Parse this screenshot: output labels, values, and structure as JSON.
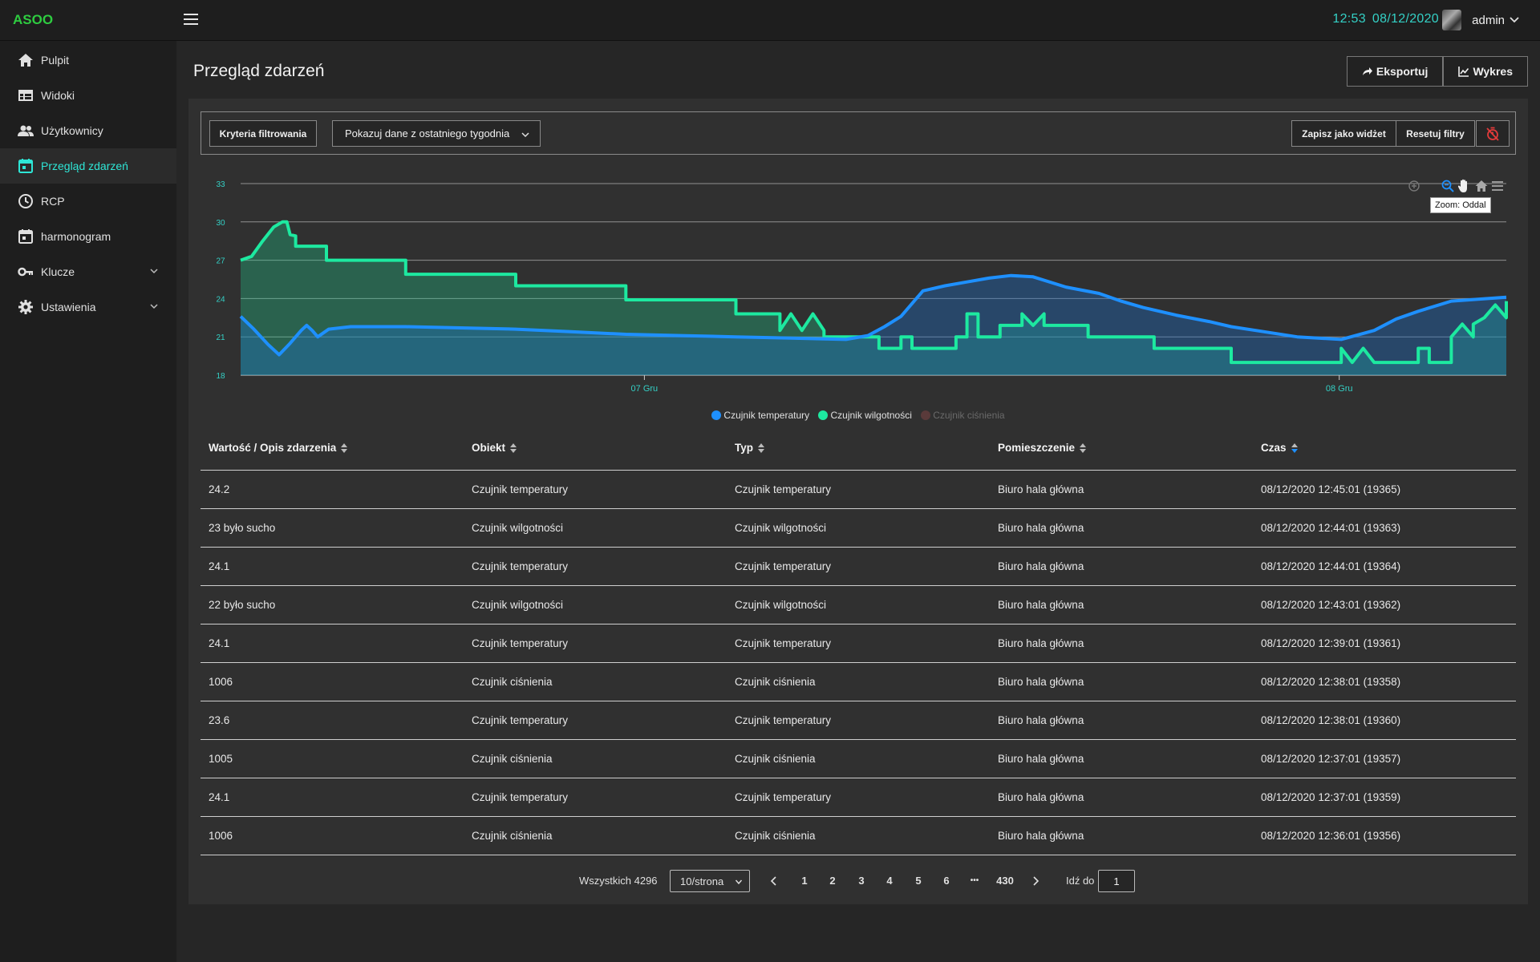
{
  "app": {
    "brand": "ASOO"
  },
  "header": {
    "time": "12:53",
    "date": "08/12/2020",
    "user": "admin"
  },
  "sidebar": {
    "items": [
      {
        "label": "Pulpit",
        "icon": "home-icon"
      },
      {
        "label": "Widoki",
        "icon": "table-icon"
      },
      {
        "label": "Użytkownicy",
        "icon": "users-icon"
      },
      {
        "label": "Przegląd zdarzeń",
        "icon": "calendar-icon",
        "active": true
      },
      {
        "label": "RCP",
        "icon": "clock-icon"
      },
      {
        "label": "harmonogram",
        "icon": "calendar-icon"
      },
      {
        "label": "Klucze",
        "icon": "key-icon",
        "expandable": true
      },
      {
        "label": "Ustawienia",
        "icon": "gear-icon",
        "expandable": true
      }
    ]
  },
  "page": {
    "title": "Przegląd zdarzeń",
    "export_label": "Eksportuj",
    "chart_label": "Wykres"
  },
  "filters": {
    "criteria_label": "Kryteria filtrowania",
    "range_value": "Pokazuj dane z ostatniego tygodnia",
    "save_widget_label": "Zapisz jako widżet",
    "reset_label": "Resetuj filtry"
  },
  "tooltip": "Zoom: Oddal",
  "chart_data": {
    "type": "area",
    "yticks": [
      18.0,
      21.0,
      24.0,
      27.0,
      30.0,
      33.0
    ],
    "ylim": [
      18,
      33
    ],
    "xticks": [
      "07 Gru",
      "08 Gru"
    ],
    "grid": true,
    "legend_position": "bottom",
    "series": [
      {
        "name": "Czujnik temperatury",
        "color": "#1e90ff",
        "visible": true,
        "points": [
          [
            0.0,
            22.6
          ],
          [
            0.012,
            21.6
          ],
          [
            0.025,
            20.4
          ],
          [
            0.035,
            19.6
          ],
          [
            0.045,
            20.5
          ],
          [
            0.055,
            21.5
          ],
          [
            0.06,
            21.9
          ],
          [
            0.065,
            21.5
          ],
          [
            0.07,
            21.0
          ],
          [
            0.08,
            21.6
          ],
          [
            0.1,
            21.8
          ],
          [
            0.15,
            21.8
          ],
          [
            0.2,
            21.7
          ],
          [
            0.25,
            21.6
          ],
          [
            0.3,
            21.4
          ],
          [
            0.35,
            21.2
          ],
          [
            0.4,
            21.1
          ],
          [
            0.45,
            21.0
          ],
          [
            0.5,
            20.9
          ],
          [
            0.55,
            20.8
          ],
          [
            0.57,
            21.1
          ],
          [
            0.585,
            21.8
          ],
          [
            0.6,
            22.6
          ],
          [
            0.62,
            24.6
          ],
          [
            0.64,
            25.0
          ],
          [
            0.66,
            25.3
          ],
          [
            0.68,
            25.6
          ],
          [
            0.7,
            25.8
          ],
          [
            0.72,
            25.7
          ],
          [
            0.75,
            24.9
          ],
          [
            0.78,
            24.4
          ],
          [
            0.8,
            23.8
          ],
          [
            0.82,
            23.3
          ],
          [
            0.85,
            22.7
          ],
          [
            0.88,
            22.2
          ],
          [
            0.9,
            21.8
          ],
          [
            0.93,
            21.4
          ],
          [
            0.96,
            21.0
          ],
          [
            1.0,
            20.8
          ],
          [
            1.03,
            21.5
          ],
          [
            1.05,
            22.4
          ],
          [
            1.07,
            23.0
          ],
          [
            1.1,
            23.8
          ],
          [
            1.15,
            24.1
          ]
        ]
      },
      {
        "name": "Czujnik wilgotności",
        "color": "#1de9a0",
        "visible": true,
        "points": [
          [
            0.0,
            27.0
          ],
          [
            0.01,
            27.3
          ],
          [
            0.02,
            28.5
          ],
          [
            0.03,
            29.6
          ],
          [
            0.038,
            30.0
          ],
          [
            0.042,
            30.0
          ],
          [
            0.045,
            29.0
          ],
          [
            0.05,
            28.9
          ],
          [
            0.05,
            28.1
          ],
          [
            0.078,
            28.1
          ],
          [
            0.078,
            27.0
          ],
          [
            0.15,
            27.0
          ],
          [
            0.15,
            25.9
          ],
          [
            0.25,
            25.9
          ],
          [
            0.25,
            25.0
          ],
          [
            0.35,
            25.0
          ],
          [
            0.35,
            23.9
          ],
          [
            0.45,
            23.9
          ],
          [
            0.45,
            22.8
          ],
          [
            0.49,
            22.8
          ],
          [
            0.49,
            21.5
          ],
          [
            0.5,
            22.8
          ],
          [
            0.51,
            21.5
          ],
          [
            0.52,
            22.8
          ],
          [
            0.53,
            21.5
          ],
          [
            0.53,
            21.0
          ],
          [
            0.58,
            21.0
          ],
          [
            0.58,
            20.1
          ],
          [
            0.6,
            20.1
          ],
          [
            0.6,
            21.0
          ],
          [
            0.61,
            21.0
          ],
          [
            0.61,
            20.1
          ],
          [
            0.65,
            20.1
          ],
          [
            0.65,
            21.0
          ],
          [
            0.66,
            21.0
          ],
          [
            0.66,
            22.8
          ],
          [
            0.67,
            22.8
          ],
          [
            0.67,
            21.0
          ],
          [
            0.69,
            21.0
          ],
          [
            0.69,
            21.9
          ],
          [
            0.71,
            21.9
          ],
          [
            0.71,
            22.8
          ],
          [
            0.72,
            21.9
          ],
          [
            0.73,
            22.8
          ],
          [
            0.73,
            21.9
          ],
          [
            0.77,
            21.9
          ],
          [
            0.77,
            21.0
          ],
          [
            0.83,
            21.0
          ],
          [
            0.83,
            20.1
          ],
          [
            0.9,
            20.1
          ],
          [
            0.9,
            19.0
          ],
          [
            1.0,
            19.0
          ],
          [
            1.0,
            20.1
          ],
          [
            1.01,
            19.0
          ],
          [
            1.02,
            20.1
          ],
          [
            1.03,
            19.0
          ],
          [
            1.07,
            19.0
          ],
          [
            1.07,
            20.1
          ],
          [
            1.08,
            20.1
          ],
          [
            1.08,
            19.0
          ],
          [
            1.1,
            19.0
          ],
          [
            1.1,
            21.0
          ],
          [
            1.11,
            22.0
          ],
          [
            1.12,
            21.0
          ],
          [
            1.12,
            22.0
          ],
          [
            1.13,
            22.5
          ],
          [
            1.14,
            23.5
          ],
          [
            1.15,
            22.5
          ],
          [
            1.15,
            23.8
          ]
        ]
      },
      {
        "name": "Czujnik ciśnienia",
        "color": "#8a5a5a",
        "visible": false,
        "points": []
      }
    ]
  },
  "table": {
    "columns": [
      {
        "label": "Wartość / Opis zdarzenia"
      },
      {
        "label": "Obiekt"
      },
      {
        "label": "Typ"
      },
      {
        "label": "Pomieszczenie"
      },
      {
        "label": "Czas",
        "sorted": "desc"
      }
    ],
    "rows": [
      [
        "24.2",
        "Czujnik temperatury",
        "Czujnik temperatury",
        "Biuro hala główna",
        "08/12/2020 12:45:01 (19365)"
      ],
      [
        "23 było sucho",
        "Czujnik wilgotności",
        "Czujnik wilgotności",
        "Biuro hala główna",
        "08/12/2020 12:44:01 (19363)"
      ],
      [
        "24.1",
        "Czujnik temperatury",
        "Czujnik temperatury",
        "Biuro hala główna",
        "08/12/2020 12:44:01 (19364)"
      ],
      [
        "22 było sucho",
        "Czujnik wilgotności",
        "Czujnik wilgotności",
        "Biuro hala główna",
        "08/12/2020 12:43:01 (19362)"
      ],
      [
        "24.1",
        "Czujnik temperatury",
        "Czujnik temperatury",
        "Biuro hala główna",
        "08/12/2020 12:39:01 (19361)"
      ],
      [
        "1006",
        "Czujnik ciśnienia",
        "Czujnik ciśnienia",
        "Biuro hala główna",
        "08/12/2020 12:38:01 (19358)"
      ],
      [
        "23.6",
        "Czujnik temperatury",
        "Czujnik temperatury",
        "Biuro hala główna",
        "08/12/2020 12:38:01 (19360)"
      ],
      [
        "1005",
        "Czujnik ciśnienia",
        "Czujnik ciśnienia",
        "Biuro hala główna",
        "08/12/2020 12:37:01 (19357)"
      ],
      [
        "24.1",
        "Czujnik temperatury",
        "Czujnik temperatury",
        "Biuro hala główna",
        "08/12/2020 12:37:01 (19359)"
      ],
      [
        "1006",
        "Czujnik ciśnienia",
        "Czujnik ciśnienia",
        "Biuro hala główna",
        "08/12/2020 12:36:01 (19356)"
      ]
    ]
  },
  "pagination": {
    "total_label": "Wszystkich 4296",
    "page_size": "10/strona",
    "pages": [
      "1",
      "2",
      "3",
      "4",
      "5",
      "6",
      "•••",
      "430"
    ],
    "goto_label": "Idź do",
    "goto_value": "1"
  }
}
